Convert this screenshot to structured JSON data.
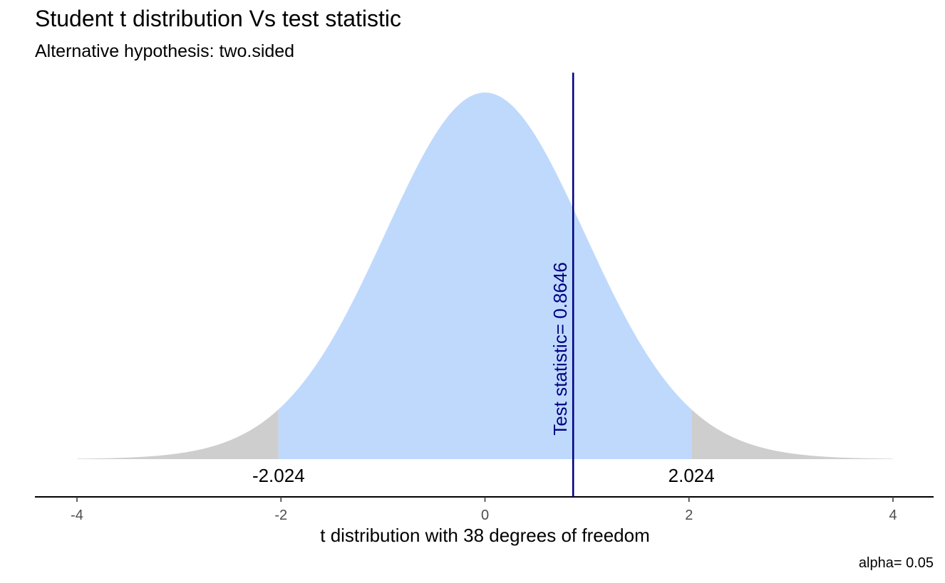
{
  "title": "Student t distribution Vs test statistic",
  "subtitle": "Alternative hypothesis: two.sided",
  "caption": "alpha= 0.05",
  "chart_data": {
    "type": "area",
    "distribution": "Student t",
    "df": 38,
    "xlabel": "t distribution with 38 degrees of freedom",
    "xlim": [
      -4,
      4
    ],
    "x_ticks": [
      -4,
      -2,
      0,
      2,
      4
    ],
    "x_tick_labels": [
      "-4",
      "-2",
      "0",
      "2",
      "4"
    ],
    "critical_values": [
      -2.024,
      2.024
    ],
    "critical_labels": [
      "-2.024",
      "2.024"
    ],
    "test_statistic": 0.8646,
    "test_statistic_label": "Test statistic= 0.8646",
    "regions": [
      {
        "name": "rejection-left",
        "from": -4,
        "to": -2.024,
        "color": "#cecece"
      },
      {
        "name": "acceptance",
        "from": -2.024,
        "to": 2.024,
        "color": "#bfd9fd"
      },
      {
        "name": "rejection-right",
        "from": 2.024,
        "to": 4,
        "color": "#cecece"
      }
    ],
    "line_color": "#000080",
    "grid": false
  }
}
